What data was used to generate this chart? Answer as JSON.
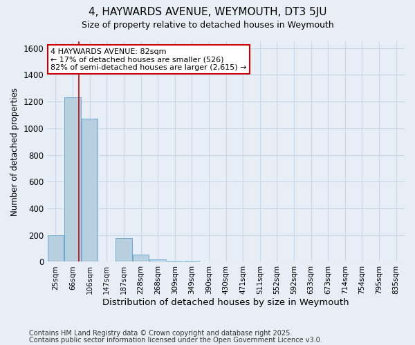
{
  "title1": "4, HAYWARDS AVENUE, WEYMOUTH, DT3 5JU",
  "title2": "Size of property relative to detached houses in Weymouth",
  "xlabel": "Distribution of detached houses by size in Weymouth",
  "ylabel": "Number of detached properties",
  "categories": [
    "25sqm",
    "66sqm",
    "106sqm",
    "147sqm",
    "187sqm",
    "228sqm",
    "268sqm",
    "309sqm",
    "349sqm",
    "390sqm",
    "430sqm",
    "471sqm",
    "511sqm",
    "552sqm",
    "592sqm",
    "633sqm",
    "673sqm",
    "714sqm",
    "754sqm",
    "795sqm",
    "835sqm"
  ],
  "values": [
    200,
    1230,
    1070,
    0,
    180,
    55,
    20,
    10,
    5,
    2,
    0,
    0,
    0,
    0,
    0,
    0,
    0,
    0,
    0,
    0,
    0
  ],
  "bar_color": "#b8cfe0",
  "bar_edge_color": "#6aaad4",
  "grid_color": "#c8d8e8",
  "background_color": "#e8eef5",
  "red_line_x": 1.35,
  "annotation_text": "4 HAYWARDS AVENUE: 82sqm\n← 17% of detached houses are smaller (526)\n82% of semi-detached houses are larger (2,615) →",
  "annotation_box_color": "#ffffff",
  "annotation_border_color": "#cc0000",
  "ylim": [
    0,
    1650
  ],
  "yticks": [
    0,
    200,
    400,
    600,
    800,
    1000,
    1200,
    1400,
    1600
  ],
  "footnote1": "Contains HM Land Registry data © Crown copyright and database right 2025.",
  "footnote2": "Contains public sector information licensed under the Open Government Licence v3.0."
}
